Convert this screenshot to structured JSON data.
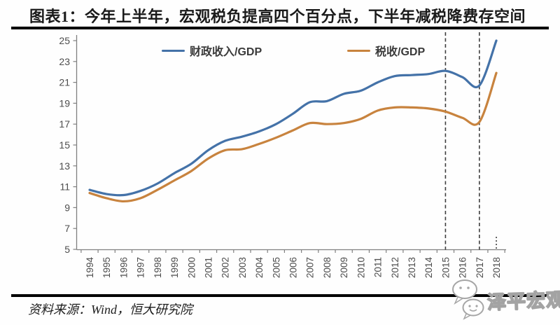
{
  "header": {
    "title": "图表1：今年上半年，宏观税负提高四个百分点，下半年减税降费存空间"
  },
  "chart_data": {
    "type": "line",
    "title": "图表1：今年上半年，宏观税负提高四个百分点，下半年减税降费存空间",
    "x": [
      "1994",
      "1995",
      "1996",
      "1997",
      "1998",
      "1999",
      "2000",
      "2001",
      "2002",
      "2003",
      "2004",
      "2005",
      "2006",
      "2007",
      "2008",
      "2009",
      "2010",
      "2011",
      "2012",
      "2013",
      "2014",
      "2015",
      "2016",
      "2017",
      "2018"
    ],
    "series": [
      {
        "name": "财政收入/GDP",
        "color": "#4472a8",
        "values": [
          10.7,
          10.3,
          10.2,
          10.6,
          11.3,
          12.3,
          13.2,
          14.5,
          15.4,
          15.8,
          16.3,
          17.0,
          18.0,
          19.1,
          19.2,
          19.9,
          20.2,
          21.0,
          21.6,
          21.7,
          21.8,
          22.1,
          21.5,
          20.7,
          25.0
        ]
      },
      {
        "name": "税收/GDP",
        "color": "#c8833e",
        "values": [
          10.4,
          9.9,
          9.6,
          9.9,
          10.7,
          11.6,
          12.5,
          13.7,
          14.5,
          14.6,
          15.1,
          15.7,
          16.4,
          17.1,
          17.0,
          17.1,
          17.5,
          18.3,
          18.6,
          18.6,
          18.5,
          18.2,
          17.6,
          17.2,
          21.9
        ]
      }
    ],
    "ylim": [
      5,
      25
    ],
    "yticks": [
      5,
      7,
      9,
      11,
      13,
      15,
      17,
      19,
      21,
      23,
      25
    ],
    "grid": false,
    "legend_position": "top-center",
    "annotations": {
      "dashed_vlines_x": [
        "2015",
        "2017"
      ],
      "dotted_stub_x": "2018"
    }
  },
  "footer": {
    "source": "资料来源：Wind，恒大研究院",
    "watermark": "泽平宏观"
  },
  "colors": {
    "fiscal_line": "#4472a8",
    "tax_line": "#c8833e",
    "rule": "#000000",
    "axis": "#808080",
    "tick_label": "#4d4d4d",
    "dashed": "#3f3f3f"
  }
}
